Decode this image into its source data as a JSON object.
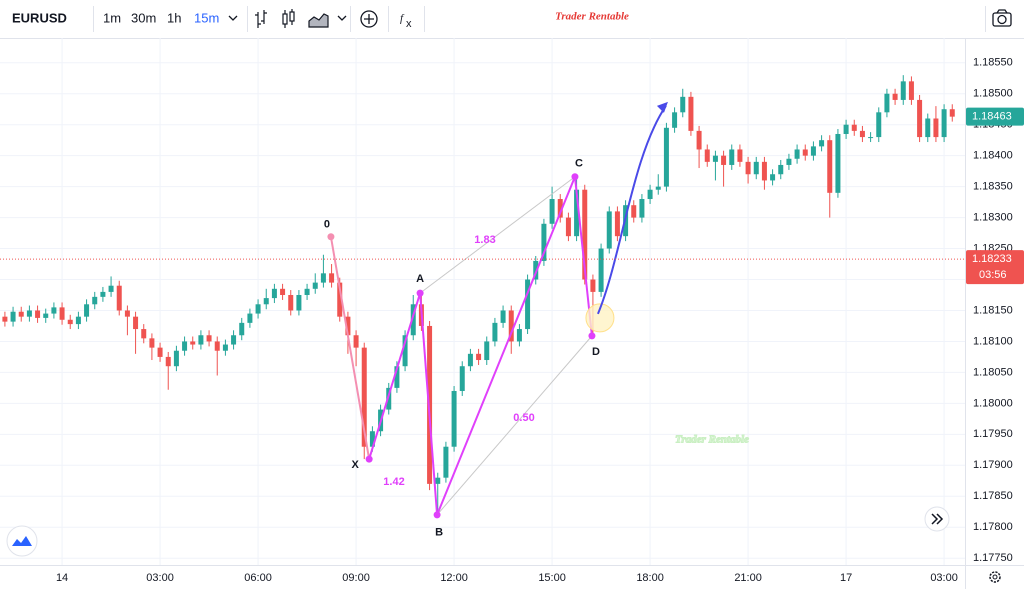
{
  "toolbar": {
    "symbol": "EURUSD",
    "intervals": [
      "1m",
      "30m",
      "1h",
      "15m"
    ],
    "active_interval": 3
  },
  "header": {
    "brand": "Trader Rentable"
  },
  "chart_data": {
    "type": "candlestick",
    "watermark": "Trader Rentable",
    "up_color": "#26a69a",
    "down_color": "#ef5350",
    "xlim": [
      -1.9,
      27.64
    ],
    "xticks": [
      {
        "value": 0,
        "label": "14"
      },
      {
        "value": 3,
        "label": "03:00"
      },
      {
        "value": 6,
        "label": "06:00"
      },
      {
        "value": 9,
        "label": "09:00"
      },
      {
        "value": 12,
        "label": "12:00"
      },
      {
        "value": 15,
        "label": "15:00"
      },
      {
        "value": 18,
        "label": "18:00"
      },
      {
        "value": 21,
        "label": "21:00"
      },
      {
        "value": 24,
        "label": "17"
      },
      {
        "value": 27,
        "label": "03:00"
      }
    ],
    "ylim": [
      1.17739,
      1.1859
    ],
    "yticks": [
      {
        "value": 1.1775,
        "label": "1.17750"
      },
      {
        "value": 1.178,
        "label": "1.17800"
      },
      {
        "value": 1.1785,
        "label": "1.17850"
      },
      {
        "value": 1.179,
        "label": "1.17900"
      },
      {
        "value": 1.1795,
        "label": "1.17950"
      },
      {
        "value": 1.18,
        "label": "1.18000"
      },
      {
        "value": 1.1805,
        "label": "1.18050"
      },
      {
        "value": 1.181,
        "label": "1.18100"
      },
      {
        "value": 1.1815,
        "label": "1.18150"
      },
      {
        "value": 1.182,
        "label": "1.18200"
      },
      {
        "value": 1.1825,
        "label": "1.18250"
      },
      {
        "value": 1.183,
        "label": "1.18300"
      },
      {
        "value": 1.1835,
        "label": "1.18350"
      },
      {
        "value": 1.184,
        "label": "1.18400"
      },
      {
        "value": 1.1845,
        "label": "1.18450"
      },
      {
        "value": 1.185,
        "label": "1.18500"
      },
      {
        "value": 1.1855,
        "label": "1.18550"
      }
    ],
    "grid": true,
    "x": [
      -1.75,
      -1.5,
      -1.25,
      -1,
      -0.75,
      -0.5,
      -0.25,
      0,
      0.25,
      0.5,
      0.75,
      1,
      1.25,
      1.5,
      1.75,
      2,
      2.25,
      2.5,
      2.75,
      3,
      3.25,
      3.5,
      3.75,
      4,
      4.25,
      4.5,
      4.75,
      5,
      5.25,
      5.5,
      5.75,
      6,
      6.25,
      6.5,
      6.75,
      7,
      7.25,
      7.5,
      7.75,
      8,
      8.25,
      8.5,
      8.75,
      9,
      9.25,
      9.5,
      9.75,
      10,
      10.25,
      10.5,
      10.75,
      11,
      11.25,
      11.5,
      11.75,
      12,
      12.25,
      12.5,
      12.75,
      13,
      13.25,
      13.5,
      13.75,
      14,
      14.25,
      14.5,
      14.75,
      15,
      15.25,
      15.5,
      15.75,
      16,
      16.25,
      16.5,
      16.75,
      17,
      17.25,
      17.5,
      17.75,
      18,
      18.25,
      18.5,
      18.75,
      19,
      19.25,
      19.5,
      19.75,
      20,
      20.25,
      20.5,
      20.75,
      21,
      21.25,
      21.5,
      21.75,
      22,
      22.25,
      22.5,
      22.75,
      23,
      23.25,
      23.5,
      23.75,
      24,
      24.25,
      24.5,
      24.75,
      25,
      25.25,
      25.5,
      25.75,
      26,
      26.25,
      26.5,
      26.75,
      27,
      27.25
    ],
    "open": [
      1.1814,
      1.18132,
      1.18148,
      1.1814,
      1.1815,
      1.18138,
      1.18145,
      1.18155,
      1.18135,
      1.18128,
      1.1814,
      1.1816,
      1.18172,
      1.1818,
      1.1819,
      1.1815,
      1.1814,
      1.1812,
      1.18105,
      1.1809,
      1.18075,
      1.1806,
      1.18085,
      1.181,
      1.18095,
      1.1811,
      1.181,
      1.18085,
      1.18095,
      1.1811,
      1.1813,
      1.18145,
      1.1816,
      1.1817,
      1.18185,
      1.18175,
      1.1815,
      1.18175,
      1.18185,
      1.18195,
      1.1821,
      1.18195,
      1.1814,
      1.1811,
      1.1809,
      1.1793,
      1.17955,
      1.1799,
      1.18025,
      1.1806,
      1.1811,
      1.1816,
      1.18125,
      1.1787,
      1.1788,
      1.1793,
      1.1802,
      1.1806,
      1.1808,
      1.1807,
      1.181,
      1.1813,
      1.1815,
      1.181,
      1.1812,
      1.182,
      1.1823,
      1.1829,
      1.1833,
      1.183,
      1.1827,
      1.18345,
      1.182,
      1.1818,
      1.1825,
      1.1831,
      1.1827,
      1.1832,
      1.183,
      1.1833,
      1.18345,
      1.1835,
      1.18445,
      1.1847,
      1.18495,
      1.1844,
      1.1841,
      1.1839,
      1.184,
      1.18385,
      1.1841,
      1.1839,
      1.1837,
      1.1839,
      1.1836,
      1.1837,
      1.18385,
      1.18395,
      1.1841,
      1.184,
      1.18415,
      1.18425,
      1.1834,
      1.18435,
      1.1845,
      1.1844,
      1.1843,
      1.1843,
      1.1847,
      1.185,
      1.1849,
      1.1852,
      1.1849,
      1.1843,
      1.1846,
      1.1843,
      1.18475
    ],
    "high": [
      1.18148,
      1.18156,
      1.18156,
      1.18158,
      1.18158,
      1.18153,
      1.18163,
      1.18163,
      1.18143,
      1.18148,
      1.18168,
      1.1818,
      1.18188,
      1.18205,
      1.18198,
      1.18158,
      1.18148,
      1.18128,
      1.18113,
      1.18098,
      1.18083,
      1.18093,
      1.18108,
      1.18108,
      1.18118,
      1.18118,
      1.18108,
      1.18103,
      1.18118,
      1.18138,
      1.18153,
      1.18168,
      1.18185,
      1.18193,
      1.18193,
      1.18183,
      1.18183,
      1.18193,
      1.1821,
      1.1824,
      1.18225,
      1.18203,
      1.18148,
      1.18118,
      1.18098,
      1.17963,
      1.17998,
      1.18033,
      1.18068,
      1.18118,
      1.18175,
      1.18178,
      1.18133,
      1.17888,
      1.17938,
      1.18028,
      1.18068,
      1.18088,
      1.18088,
      1.18108,
      1.18138,
      1.18158,
      1.18158,
      1.18128,
      1.18208,
      1.18238,
      1.18298,
      1.1835,
      1.18338,
      1.18308,
      1.18366,
      1.18353,
      1.18208,
      1.18258,
      1.18318,
      1.18318,
      1.18328,
      1.18328,
      1.18338,
      1.18353,
      1.1837,
      1.18453,
      1.18478,
      1.18508,
      1.18503,
      1.18448,
      1.18418,
      1.18408,
      1.18408,
      1.18418,
      1.18418,
      1.18398,
      1.18398,
      1.18398,
      1.18378,
      1.18393,
      1.18403,
      1.18418,
      1.18418,
      1.18423,
      1.18433,
      1.18433,
      1.18443,
      1.18458,
      1.18458,
      1.18448,
      1.18438,
      1.18478,
      1.18508,
      1.18508,
      1.1853,
      1.18528,
      1.18498,
      1.18468,
      1.1848,
      1.18483,
      1.18483
    ],
    "low": [
      1.18124,
      1.18124,
      1.18132,
      1.18132,
      1.1813,
      1.1813,
      1.18137,
      1.18127,
      1.1812,
      1.1812,
      1.18132,
      1.18152,
      1.18164,
      1.18172,
      1.18142,
      1.1811,
      1.1808,
      1.18097,
      1.1807,
      1.18067,
      1.18022,
      1.18052,
      1.18077,
      1.18087,
      1.18087,
      1.18092,
      1.18045,
      1.18077,
      1.18087,
      1.18102,
      1.18122,
      1.18137,
      1.18152,
      1.18162,
      1.18167,
      1.18142,
      1.18142,
      1.18167,
      1.18177,
      1.18187,
      1.18187,
      1.18132,
      1.1808,
      1.1806,
      1.1791,
      1.17922,
      1.17947,
      1.17982,
      1.18017,
      1.18052,
      1.18102,
      1.18117,
      1.1786,
      1.1782,
      1.17872,
      1.17922,
      1.18012,
      1.18052,
      1.18062,
      1.18062,
      1.18092,
      1.18122,
      1.1808,
      1.18092,
      1.18112,
      1.18192,
      1.18222,
      1.18282,
      1.18292,
      1.18262,
      1.18262,
      1.18192,
      1.1811,
      1.18172,
      1.18242,
      1.18262,
      1.18262,
      1.18292,
      1.18292,
      1.18322,
      1.18337,
      1.18342,
      1.18437,
      1.18462,
      1.18432,
      1.1838,
      1.18382,
      1.1836,
      1.1835,
      1.18377,
      1.18382,
      1.18355,
      1.18362,
      1.18345,
      1.18352,
      1.18362,
      1.18377,
      1.18387,
      1.18392,
      1.18392,
      1.18407,
      1.183,
      1.18332,
      1.18427,
      1.18432,
      1.18422,
      1.18422,
      1.18422,
      1.18462,
      1.18482,
      1.18482,
      1.18482,
      1.18422,
      1.18422,
      1.18422,
      1.18422,
      1.18455
    ],
    "close": [
      1.18132,
      1.18148,
      1.1814,
      1.1815,
      1.18138,
      1.18145,
      1.18155,
      1.18135,
      1.18128,
      1.1814,
      1.1816,
      1.18172,
      1.1818,
      1.1819,
      1.1815,
      1.1814,
      1.1812,
      1.18105,
      1.1809,
      1.18075,
      1.1806,
      1.18085,
      1.181,
      1.18095,
      1.1811,
      1.181,
      1.18085,
      1.18095,
      1.1811,
      1.1813,
      1.18145,
      1.1816,
      1.1817,
      1.18185,
      1.18175,
      1.1815,
      1.18175,
      1.18185,
      1.18195,
      1.1821,
      1.18195,
      1.1814,
      1.1811,
      1.1809,
      1.1793,
      1.17955,
      1.1799,
      1.18025,
      1.1806,
      1.1811,
      1.1816,
      1.18125,
      1.1787,
      1.1788,
      1.1793,
      1.1802,
      1.1806,
      1.1808,
      1.1807,
      1.181,
      1.1813,
      1.1815,
      1.181,
      1.1812,
      1.182,
      1.1823,
      1.1829,
      1.1833,
      1.183,
      1.1827,
      1.18345,
      1.182,
      1.1818,
      1.1825,
      1.1831,
      1.1827,
      1.1832,
      1.183,
      1.1833,
      1.18345,
      1.1835,
      1.18445,
      1.1847,
      1.18495,
      1.1844,
      1.1841,
      1.1839,
      1.184,
      1.18385,
      1.1841,
      1.1839,
      1.1837,
      1.1839,
      1.1836,
      1.1837,
      1.18385,
      1.18395,
      1.1841,
      1.184,
      1.18415,
      1.18425,
      1.1834,
      1.18435,
      1.1845,
      1.1844,
      1.1843,
      1.1843,
      1.1847,
      1.185,
      1.1849,
      1.1852,
      1.1849,
      1.1843,
      1.1846,
      1.1843,
      1.18475,
      1.18463
    ],
    "last_price": {
      "value": 1.18463,
      "label": "1.18463"
    },
    "price_line": {
      "value": 1.18233,
      "label": "1.18233",
      "countdown": "03:56",
      "color": "#ef5350"
    },
    "pattern": {
      "color": "#e040fb",
      "start_color": "#f48fb1",
      "points": [
        {
          "label": "0",
          "x": 8.23,
          "y": 1.18269
        },
        {
          "label": "X",
          "x": 9.4,
          "y": 1.1791
        },
        {
          "label": "A",
          "x": 10.96,
          "y": 1.18178
        },
        {
          "label": "B",
          "x": 11.48,
          "y": 1.1782
        },
        {
          "label": "C",
          "x": 15.7,
          "y": 1.18366
        },
        {
          "label": "D",
          "x": 16.22,
          "y": 1.18109
        }
      ],
      "ratios": [
        "1.83",
        "1.42",
        "0.50"
      ]
    }
  }
}
